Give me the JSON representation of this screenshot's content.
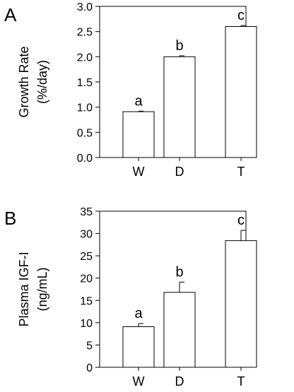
{
  "chart_data": [
    {
      "panel_label": "A",
      "type": "bar",
      "categories": [
        "W",
        "D",
        "T"
      ],
      "values": [
        0.91,
        2.0,
        2.6
      ],
      "errors": [
        0.01,
        0.02,
        0.02
      ],
      "annotations": [
        "a",
        "b",
        "c"
      ],
      "ylabel_lines": [
        "Growth Rate",
        "(%/day)"
      ],
      "ylim": [
        0,
        3.0
      ],
      "yticks": [
        "0.0",
        "0.5",
        "1.0",
        "1.5",
        "2.0",
        "2.5",
        "3.0"
      ],
      "grid": false
    },
    {
      "panel_label": "B",
      "type": "bar",
      "categories": [
        "W",
        "D",
        "T"
      ],
      "values": [
        9.1,
        16.8,
        28.4
      ],
      "errors": [
        0.7,
        2.3,
        2.3
      ],
      "annotations": [
        "a",
        "b",
        "c"
      ],
      "ylabel_lines": [
        "Plasma IGF-I",
        "(ng/mL)"
      ],
      "ylim": [
        0,
        35
      ],
      "yticks": [
        "0",
        "5",
        "10",
        "15",
        "20",
        "25",
        "30",
        "35"
      ],
      "grid": false
    }
  ]
}
